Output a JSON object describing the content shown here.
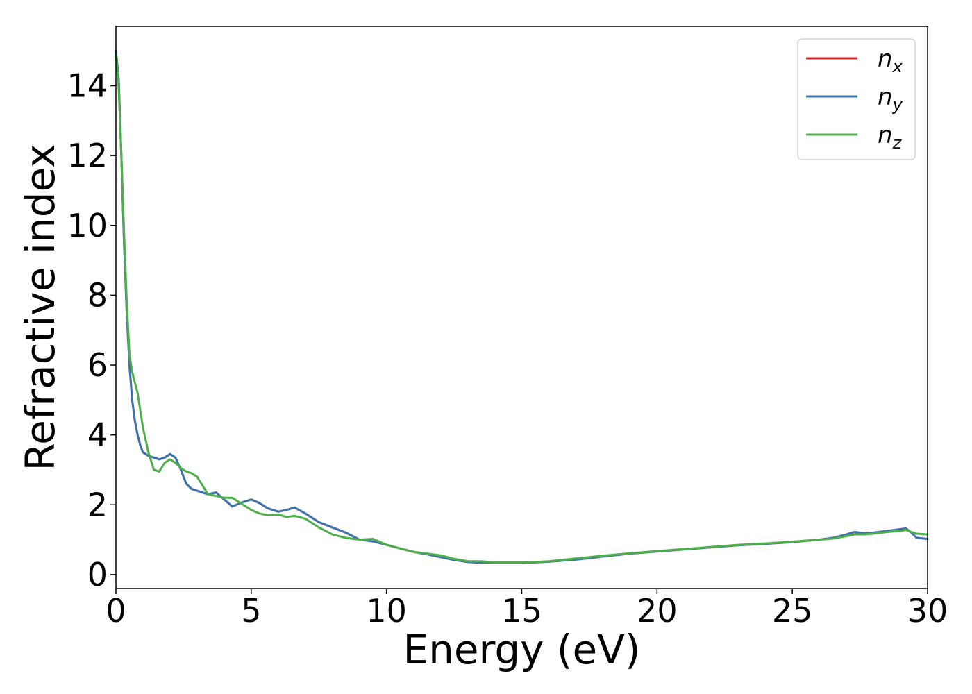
{
  "chart_data": {
    "type": "line",
    "title": "",
    "xlabel": "Energy (eV)",
    "ylabel": "Refractive index",
    "xlim": [
      0,
      30
    ],
    "ylim": [
      -0.4,
      15.7
    ],
    "xticks": [
      0,
      5,
      10,
      15,
      20,
      25,
      30
    ],
    "yticks": [
      0,
      2,
      4,
      6,
      8,
      10,
      12,
      14
    ],
    "grid": false,
    "legend_position": "top-right",
    "series": [
      {
        "name": "n_x",
        "legend_main": "n",
        "legend_sub": "x",
        "color": "#d62728",
        "x": [
          0,
          0.1,
          0.2,
          0.3,
          0.4,
          0.5,
          0.6,
          0.7,
          0.8,
          0.9,
          1.0,
          1.2,
          1.4,
          1.6,
          1.8,
          2.0,
          2.2,
          2.4,
          2.6,
          2.8,
          3.0,
          3.2,
          3.4,
          3.7,
          4.0,
          4.3,
          4.6,
          5.0,
          5.3,
          5.6,
          6.0,
          6.3,
          6.6,
          7.0,
          7.5,
          8.0,
          8.5,
          9.0,
          9.5,
          10.0,
          10.5,
          11.0,
          11.5,
          12.0,
          12.5,
          13.0,
          13.5,
          14.0,
          14.5,
          15.0,
          15.5,
          16.0,
          16.5,
          17.0,
          17.5,
          18.0,
          19.0,
          20.0,
          21.0,
          22.0,
          23.0,
          24.0,
          25.0,
          26.0,
          26.5,
          27.0,
          27.3,
          27.7,
          28.0,
          28.5,
          29.0,
          29.2,
          29.4,
          29.6,
          30.0
        ],
        "y": [
          15.0,
          14.2,
          12.0,
          9.5,
          7.5,
          6.0,
          5.0,
          4.4,
          4.0,
          3.7,
          3.5,
          3.4,
          3.35,
          3.3,
          3.35,
          3.45,
          3.35,
          3.0,
          2.6,
          2.45,
          2.4,
          2.35,
          2.3,
          2.35,
          2.15,
          1.95,
          2.05,
          2.15,
          2.05,
          1.9,
          1.8,
          1.85,
          1.92,
          1.75,
          1.5,
          1.35,
          1.2,
          1.0,
          0.95,
          0.85,
          0.75,
          0.65,
          0.58,
          0.5,
          0.42,
          0.36,
          0.34,
          0.34,
          0.34,
          0.34,
          0.35,
          0.37,
          0.4,
          0.43,
          0.47,
          0.52,
          0.6,
          0.66,
          0.72,
          0.78,
          0.84,
          0.88,
          0.93,
          1.0,
          1.05,
          1.15,
          1.22,
          1.18,
          1.2,
          1.25,
          1.3,
          1.32,
          1.2,
          1.05,
          1.02
        ]
      },
      {
        "name": "n_y",
        "legend_main": "n",
        "legend_sub": "y",
        "color": "#3a75b0",
        "x": [
          0,
          0.1,
          0.2,
          0.3,
          0.4,
          0.5,
          0.6,
          0.7,
          0.8,
          0.9,
          1.0,
          1.2,
          1.4,
          1.6,
          1.8,
          2.0,
          2.2,
          2.4,
          2.6,
          2.8,
          3.0,
          3.2,
          3.4,
          3.7,
          4.0,
          4.3,
          4.6,
          5.0,
          5.3,
          5.6,
          6.0,
          6.3,
          6.6,
          7.0,
          7.5,
          8.0,
          8.5,
          9.0,
          9.5,
          10.0,
          10.5,
          11.0,
          11.5,
          12.0,
          12.5,
          13.0,
          13.5,
          14.0,
          14.5,
          15.0,
          15.5,
          16.0,
          16.5,
          17.0,
          17.5,
          18.0,
          19.0,
          20.0,
          21.0,
          22.0,
          23.0,
          24.0,
          25.0,
          26.0,
          26.5,
          27.0,
          27.3,
          27.7,
          28.0,
          28.5,
          29.0,
          29.2,
          29.4,
          29.6,
          30.0
        ],
        "y": [
          15.0,
          14.2,
          12.0,
          9.5,
          7.5,
          6.0,
          5.0,
          4.4,
          4.0,
          3.7,
          3.5,
          3.4,
          3.35,
          3.3,
          3.35,
          3.45,
          3.35,
          3.0,
          2.6,
          2.45,
          2.4,
          2.35,
          2.3,
          2.35,
          2.15,
          1.95,
          2.05,
          2.15,
          2.05,
          1.9,
          1.8,
          1.85,
          1.92,
          1.75,
          1.5,
          1.35,
          1.2,
          1.0,
          0.95,
          0.85,
          0.75,
          0.65,
          0.58,
          0.5,
          0.42,
          0.36,
          0.34,
          0.34,
          0.34,
          0.34,
          0.35,
          0.37,
          0.4,
          0.43,
          0.47,
          0.52,
          0.6,
          0.66,
          0.72,
          0.78,
          0.84,
          0.88,
          0.93,
          1.0,
          1.05,
          1.15,
          1.22,
          1.18,
          1.2,
          1.25,
          1.3,
          1.32,
          1.2,
          1.05,
          1.02
        ]
      },
      {
        "name": "n_z",
        "legend_main": "n",
        "legend_sub": "z",
        "color": "#4daf4a",
        "x": [
          0,
          0.1,
          0.2,
          0.3,
          0.4,
          0.5,
          0.6,
          0.7,
          0.8,
          0.9,
          1.0,
          1.2,
          1.4,
          1.6,
          1.8,
          2.0,
          2.2,
          2.4,
          2.6,
          2.8,
          3.0,
          3.2,
          3.4,
          3.7,
          4.0,
          4.3,
          4.6,
          5.0,
          5.3,
          5.6,
          6.0,
          6.3,
          6.6,
          7.0,
          7.5,
          8.0,
          8.5,
          9.0,
          9.5,
          10.0,
          10.5,
          11.0,
          11.5,
          12.0,
          12.5,
          13.0,
          13.5,
          14.0,
          14.5,
          15.0,
          15.5,
          16.0,
          16.5,
          17.0,
          17.5,
          18.0,
          19.0,
          20.0,
          21.0,
          22.0,
          23.0,
          24.0,
          25.0,
          26.0,
          26.5,
          27.0,
          27.3,
          27.7,
          28.0,
          28.5,
          29.0,
          29.2,
          29.4,
          29.6,
          30.0
        ],
        "y": [
          14.9,
          14.0,
          12.0,
          9.8,
          7.8,
          6.3,
          5.8,
          5.5,
          5.2,
          4.7,
          4.2,
          3.5,
          3.0,
          2.95,
          3.2,
          3.3,
          3.2,
          3.05,
          2.95,
          2.9,
          2.8,
          2.55,
          2.3,
          2.25,
          2.2,
          2.2,
          2.05,
          1.85,
          1.75,
          1.7,
          1.72,
          1.65,
          1.68,
          1.6,
          1.35,
          1.15,
          1.05,
          1.0,
          1.02,
          0.85,
          0.75,
          0.65,
          0.6,
          0.55,
          0.45,
          0.38,
          0.38,
          0.35,
          0.35,
          0.35,
          0.36,
          0.38,
          0.42,
          0.46,
          0.5,
          0.54,
          0.61,
          0.67,
          0.73,
          0.79,
          0.85,
          0.89,
          0.94,
          1.0,
          1.03,
          1.1,
          1.15,
          1.15,
          1.17,
          1.22,
          1.25,
          1.28,
          1.22,
          1.17,
          1.15
        ]
      }
    ]
  }
}
